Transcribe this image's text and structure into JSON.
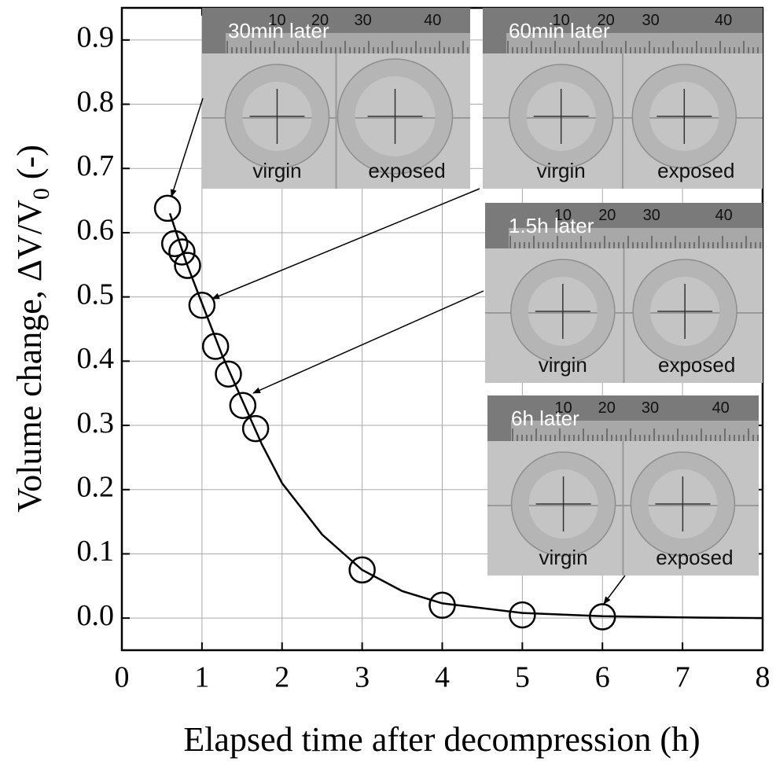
{
  "chart_data": {
    "type": "scatter",
    "xlabel": "Elapsed time after decompression (h)",
    "ylabel": "Volume change, ΔV/V",
    "ylabel_subscript": "0",
    "ylabel_suffix": " (-)",
    "xlim": [
      0,
      8
    ],
    "ylim": [
      -0.05,
      0.95
    ],
    "xticks": [
      0,
      1,
      2,
      3,
      4,
      5,
      6,
      7,
      8
    ],
    "yticks": [
      {
        "value": 0,
        "label": "0.0"
      },
      0.1,
      0.2,
      0.3,
      0.4,
      0.5,
      0.6,
      0.7,
      0.8,
      0.9
    ],
    "grid": true,
    "color": "#000000",
    "points": {
      "x": [
        0.57,
        0.66,
        0.75,
        0.82,
        1.0,
        1.17,
        1.33,
        1.51,
        1.67,
        3.0,
        4.0,
        5.0,
        6.0
      ],
      "values": [
        0.638,
        0.583,
        0.57,
        0.549,
        0.487,
        0.423,
        0.38,
        0.331,
        0.295,
        0.075,
        0.02,
        0.005,
        0.002
      ]
    },
    "fit": {
      "x": [
        0.6,
        0.8,
        1.0,
        1.25,
        1.5,
        1.75,
        2.0,
        2.5,
        3.0,
        3.5,
        4.0,
        5.0,
        6.0,
        7.0,
        8.0
      ],
      "values": [
        0.63,
        0.555,
        0.49,
        0.41,
        0.34,
        0.27,
        0.21,
        0.13,
        0.075,
        0.042,
        0.023,
        0.008,
        0.003,
        0.001,
        0.0
      ]
    },
    "insets": [
      {
        "title": "30min later",
        "labels": [
          "virgin",
          "exposed"
        ],
        "ruler": [
          "10",
          "20",
          "30",
          "40"
        ]
      },
      {
        "title": "60min later",
        "labels": [
          "virgin",
          "exposed"
        ],
        "ruler": [
          "10",
          "20",
          "30",
          "40"
        ]
      },
      {
        "title": "1.5h later",
        "labels": [
          "virgin",
          "exposed"
        ],
        "ruler": [
          "10",
          "20",
          "30",
          "40"
        ]
      },
      {
        "title": "6h later",
        "labels": [
          "virgin",
          "exposed"
        ],
        "ruler": [
          "10",
          "20",
          "30",
          "40"
        ]
      }
    ]
  }
}
